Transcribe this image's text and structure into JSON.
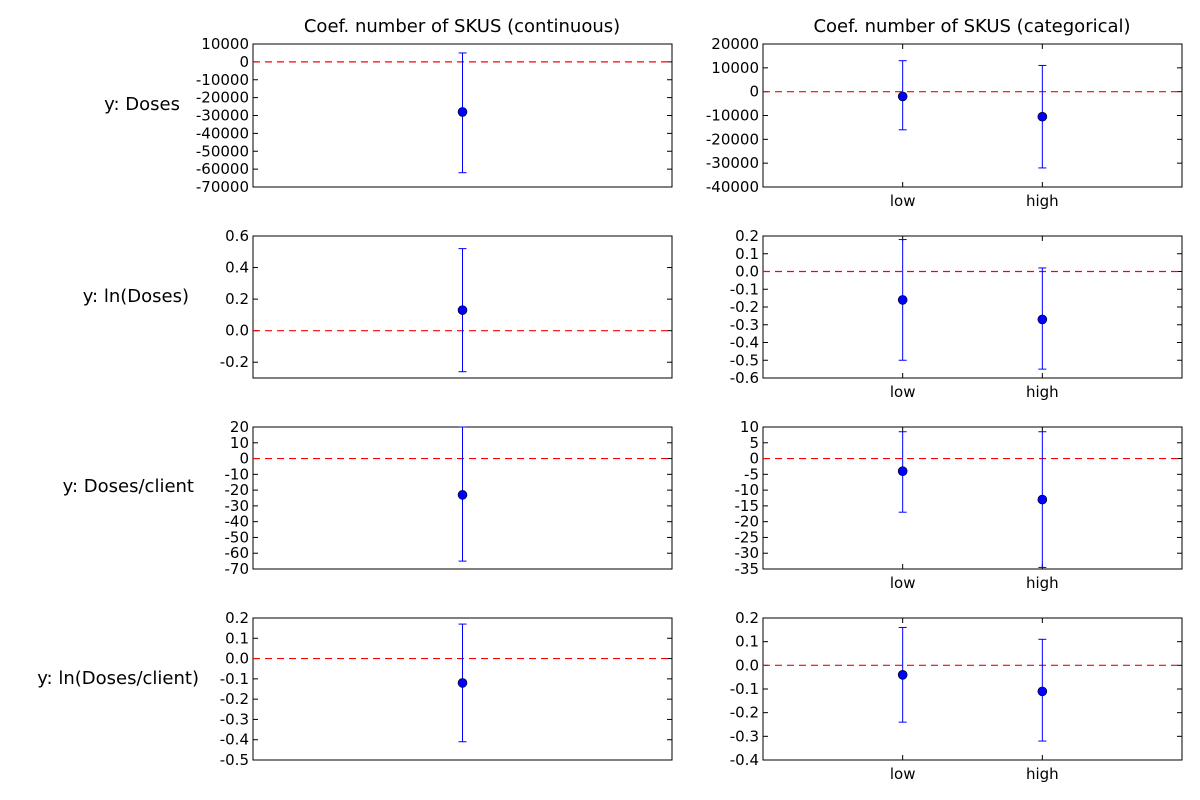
{
  "figure": {
    "column_titles": [
      "Coef. number of SKUS (continuous)",
      "Coef. number of SKUS (categorical)"
    ],
    "row_labels": [
      "y: Doses",
      "y: ln(Doses)",
      "y: Doses/client",
      "y: ln(Doses/client)"
    ]
  },
  "colors": {
    "point": "#0000ff",
    "errorbar": "#0000ff",
    "zero_line": "#ff0000",
    "axes": "#000000"
  },
  "chart_data": [
    {
      "type": "scatter",
      "subtype": "errorbar",
      "row": 0,
      "col": 0,
      "title": "Coef. number of SKUS (continuous)",
      "ylabel": "y: Doses",
      "categories": [],
      "x": [
        0.5
      ],
      "y": [
        -28000
      ],
      "yerr_low": [
        -62000
      ],
      "yerr_high": [
        5000
      ],
      "ylim": [
        -70000,
        10000
      ],
      "yticks": [
        10000,
        0,
        -10000,
        -20000,
        -30000,
        -40000,
        -50000,
        -60000,
        -70000
      ],
      "reference_line": 0,
      "grid": false
    },
    {
      "type": "scatter",
      "subtype": "errorbar",
      "row": 0,
      "col": 1,
      "title": "Coef. number of SKUS (categorical)",
      "categories": [
        "low",
        "high"
      ],
      "x": [
        1,
        2
      ],
      "y": [
        -2000,
        -10500
      ],
      "yerr_low": [
        -16000,
        -32000
      ],
      "yerr_high": [
        13000,
        11000
      ],
      "ylim": [
        -40000,
        20000
      ],
      "yticks": [
        20000,
        10000,
        0,
        -10000,
        -20000,
        -30000,
        -40000
      ],
      "reference_line": 0,
      "grid": false
    },
    {
      "type": "scatter",
      "subtype": "errorbar",
      "row": 1,
      "col": 0,
      "ylabel": "y: ln(Doses)",
      "categories": [],
      "x": [
        0.5
      ],
      "y": [
        0.13
      ],
      "yerr_low": [
        -0.26
      ],
      "yerr_high": [
        0.52
      ],
      "ylim": [
        -0.3,
        0.6
      ],
      "yticks": [
        0.6,
        0.4,
        0.2,
        0.0,
        -0.2
      ],
      "reference_line": 0,
      "grid": false
    },
    {
      "type": "scatter",
      "subtype": "errorbar",
      "row": 1,
      "col": 1,
      "categories": [
        "low",
        "high"
      ],
      "x": [
        1,
        2
      ],
      "y": [
        -0.16,
        -0.27
      ],
      "yerr_low": [
        -0.5,
        -0.55
      ],
      "yerr_high": [
        0.18,
        0.02
      ],
      "ylim": [
        -0.6,
        0.2
      ],
      "yticks": [
        0.2,
        0.1,
        0.0,
        -0.1,
        -0.2,
        -0.3,
        -0.4,
        -0.5,
        -0.6
      ],
      "reference_line": 0,
      "grid": false
    },
    {
      "type": "scatter",
      "subtype": "errorbar",
      "row": 2,
      "col": 0,
      "ylabel": "y: Doses/client",
      "categories": [],
      "x": [
        0.5
      ],
      "y": [
        -23
      ],
      "yerr_low": [
        -65
      ],
      "yerr_high": [
        20
      ],
      "ylim": [
        -70,
        20
      ],
      "yticks": [
        20,
        10,
        0,
        -10,
        -20,
        -30,
        -40,
        -50,
        -60,
        -70
      ],
      "reference_line": 0,
      "grid": false
    },
    {
      "type": "scatter",
      "subtype": "errorbar",
      "row": 2,
      "col": 1,
      "categories": [
        "low",
        "high"
      ],
      "x": [
        1,
        2
      ],
      "y": [
        -4,
        -13
      ],
      "yerr_low": [
        -17,
        -34.5
      ],
      "yerr_high": [
        8.5,
        8.5
      ],
      "ylim": [
        -35,
        10
      ],
      "yticks": [
        10,
        5,
        0,
        -5,
        -10,
        -15,
        -20,
        -25,
        -30,
        -35
      ],
      "reference_line": 0,
      "grid": false
    },
    {
      "type": "scatter",
      "subtype": "errorbar",
      "row": 3,
      "col": 0,
      "ylabel": "y: ln(Doses/client)",
      "categories": [],
      "x": [
        0.5
      ],
      "y": [
        -0.12
      ],
      "yerr_low": [
        -0.41
      ],
      "yerr_high": [
        0.17
      ],
      "ylim": [
        -0.5,
        0.2
      ],
      "yticks": [
        0.2,
        0.1,
        0.0,
        -0.1,
        -0.2,
        -0.3,
        -0.4,
        -0.5
      ],
      "reference_line": 0,
      "grid": false
    },
    {
      "type": "scatter",
      "subtype": "errorbar",
      "row": 3,
      "col": 1,
      "categories": [
        "low",
        "high"
      ],
      "x": [
        1,
        2
      ],
      "y": [
        -0.04,
        -0.11
      ],
      "yerr_low": [
        -0.24,
        -0.32
      ],
      "yerr_high": [
        0.16,
        0.11
      ],
      "ylim": [
        -0.4,
        0.2
      ],
      "yticks": [
        0.2,
        0.1,
        0.0,
        -0.1,
        -0.2,
        -0.3,
        -0.4
      ],
      "reference_line": 0,
      "grid": false
    }
  ]
}
